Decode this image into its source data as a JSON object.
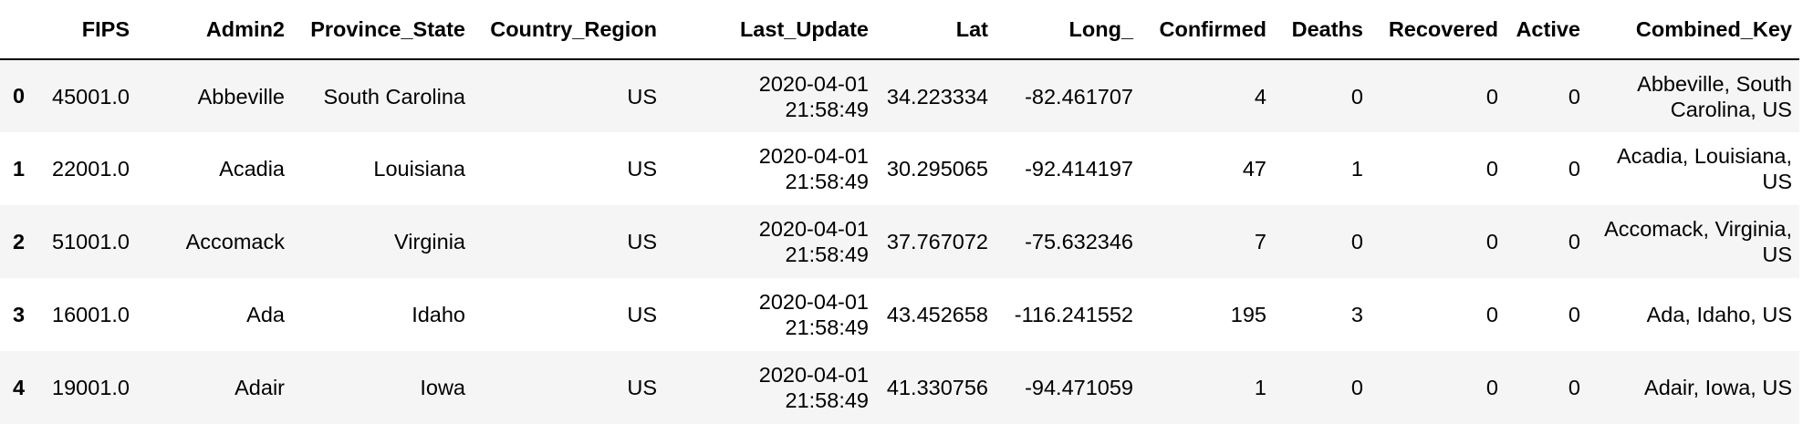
{
  "table": {
    "columns": [
      "FIPS",
      "Admin2",
      "Province_State",
      "Country_Region",
      "Last_Update",
      "Lat",
      "Long_",
      "Confirmed",
      "Deaths",
      "Recovered",
      "Active",
      "Combined_Key"
    ],
    "rows": [
      {
        "index": "0",
        "cells": [
          "45001.0",
          "Abbeville",
          "South Carolina",
          "US",
          "2020-04-01 21:58:49",
          "34.223334",
          "-82.461707",
          "4",
          "0",
          "0",
          "0",
          "Abbeville, South Carolina, US"
        ]
      },
      {
        "index": "1",
        "cells": [
          "22001.0",
          "Acadia",
          "Louisiana",
          "US",
          "2020-04-01 21:58:49",
          "30.295065",
          "-92.414197",
          "47",
          "1",
          "0",
          "0",
          "Acadia, Louisiana, US"
        ]
      },
      {
        "index": "2",
        "cells": [
          "51001.0",
          "Accomack",
          "Virginia",
          "US",
          "2020-04-01 21:58:49",
          "37.767072",
          "-75.632346",
          "7",
          "0",
          "0",
          "0",
          "Accomack, Virginia, US"
        ]
      },
      {
        "index": "3",
        "cells": [
          "16001.0",
          "Ada",
          "Idaho",
          "US",
          "2020-04-01 21:58:49",
          "43.452658",
          "-116.241552",
          "195",
          "3",
          "0",
          "0",
          "Ada, Idaho, US"
        ]
      },
      {
        "index": "4",
        "cells": [
          "19001.0",
          "Adair",
          "Iowa",
          "US",
          "2020-04-01 21:58:49",
          "41.330756",
          "-94.471059",
          "1",
          "0",
          "0",
          "0",
          "Adair, Iowa, US"
        ]
      }
    ]
  }
}
